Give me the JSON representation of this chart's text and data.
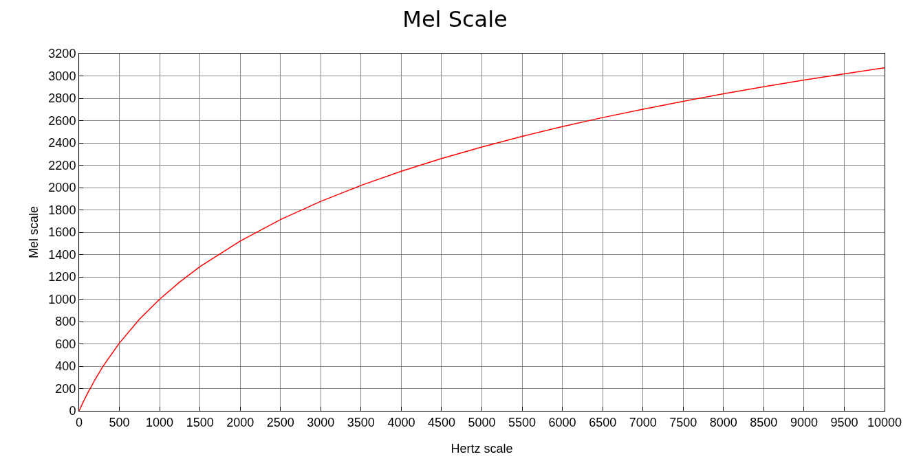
{
  "chart_data": {
    "type": "line",
    "title": "Mel Scale",
    "xlabel": "Hertz scale",
    "ylabel": "Mel scale",
    "x": [
      0,
      50,
      100,
      200,
      300,
      500,
      750,
      1000,
      1250,
      1500,
      2000,
      2500,
      3000,
      3500,
      4000,
      4500,
      5000,
      5500,
      6000,
      6500,
      7000,
      7500,
      8000,
      8500,
      9000,
      9500,
      10000
    ],
    "series": [
      {
        "color": "#ff0000",
        "values": [
          0,
          78,
          150,
          283,
          402,
          607,
          821,
          1000,
          1155,
          1291,
          1521,
          1713,
          1876,
          2019,
          2146,
          2260,
          2363,
          2458,
          2546,
          2627,
          2702,
          2773,
          2840,
          2903,
          2963,
          3019,
          3073
        ]
      }
    ],
    "xlim": [
      0,
      10000
    ],
    "xticks": [
      0,
      500,
      1000,
      1500,
      2000,
      2500,
      3000,
      3500,
      4000,
      4500,
      5000,
      5500,
      6000,
      6500,
      7000,
      7500,
      8000,
      8500,
      9000,
      9500,
      10000
    ],
    "ylim": [
      0,
      3200
    ],
    "yticks": [
      0,
      200,
      400,
      600,
      800,
      1000,
      1200,
      1400,
      1600,
      1800,
      2000,
      2200,
      2400,
      2600,
      2800,
      3000,
      3200
    ],
    "grid": true,
    "legend": false,
    "marker": "none",
    "line_style": "solid"
  }
}
